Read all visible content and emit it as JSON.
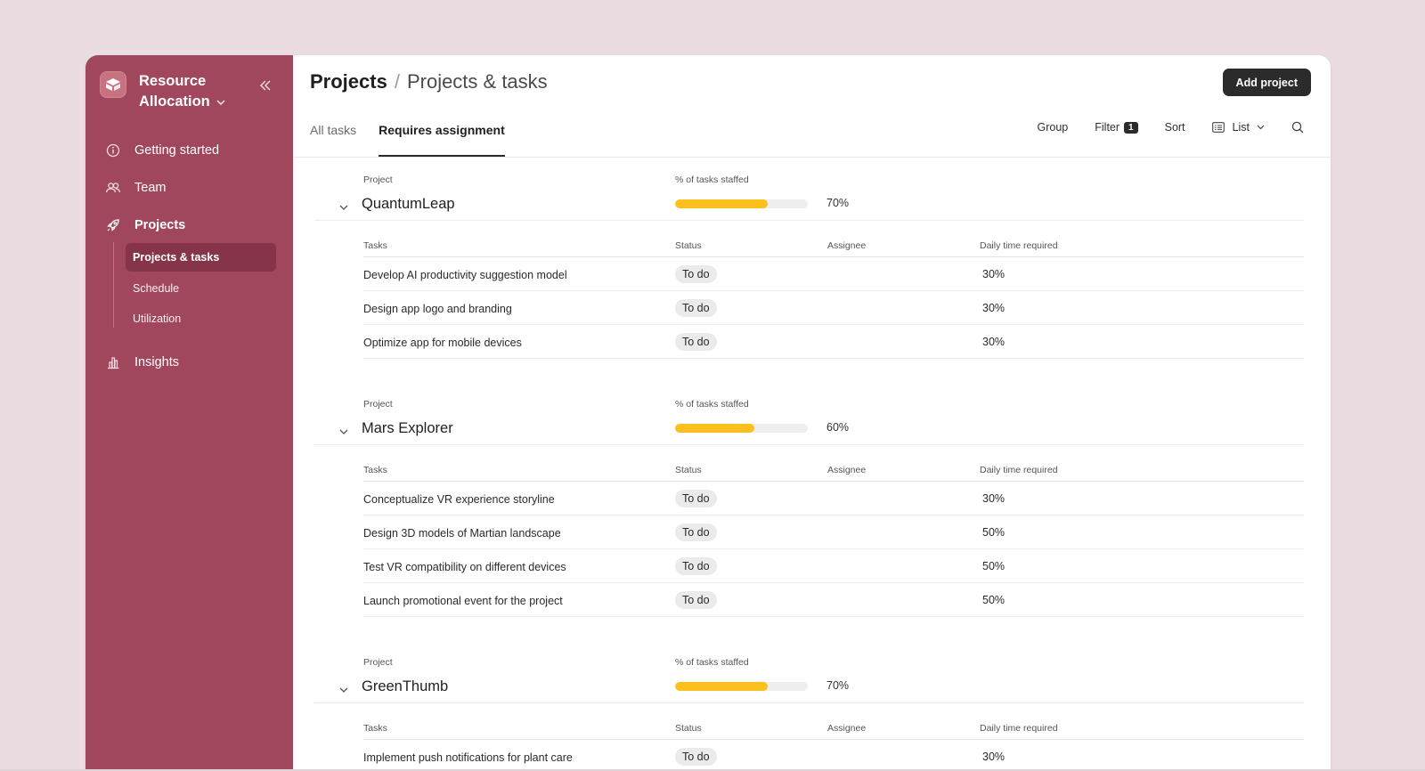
{
  "sidebar": {
    "workspace_line1": "Resource",
    "workspace_line2": "Allocation",
    "nav": [
      {
        "label": "Getting started",
        "icon": "info-icon"
      },
      {
        "label": "Team",
        "icon": "team-icon"
      },
      {
        "label": "Projects",
        "icon": "rocket-icon"
      },
      {
        "label": "Insights",
        "icon": "bar-chart-icon"
      }
    ],
    "subnav": [
      {
        "label": "Projects & tasks",
        "active": true
      },
      {
        "label": "Schedule",
        "active": false
      },
      {
        "label": "Utilization",
        "active": false
      }
    ]
  },
  "header": {
    "breadcrumb_root": "Projects",
    "breadcrumb_sep": "/",
    "breadcrumb_current": "Projects & tasks",
    "add_label": "Add project"
  },
  "tabs": [
    {
      "label": "All tasks",
      "active": false
    },
    {
      "label": "Requires assignment",
      "active": true
    }
  ],
  "toolbar": {
    "group": "Group",
    "filter": "Filter",
    "filter_count": "1",
    "sort": "Sort",
    "view": "List"
  },
  "columns": {
    "project": "Project",
    "staffed": "% of tasks staffed",
    "tasks": "Tasks",
    "status": "Status",
    "assignee": "Assignee",
    "time": "Daily time required"
  },
  "colors": {
    "sidebar": "#a0475d",
    "progress": "#fbbf1e",
    "accent_dark": "#2b2b2b"
  },
  "projects": [
    {
      "name": "QuantumLeap",
      "pct": 70,
      "pct_label": "70%",
      "tasks": [
        {
          "name": "Develop AI productivity suggestion model",
          "status": "To do",
          "assignee": "",
          "time": "30%"
        },
        {
          "name": "Design app logo and branding",
          "status": "To do",
          "assignee": "",
          "time": "30%"
        },
        {
          "name": "Optimize app for mobile devices",
          "status": "To do",
          "assignee": "",
          "time": "30%"
        }
      ]
    },
    {
      "name": "Mars Explorer",
      "pct": 60,
      "pct_label": "60%",
      "tasks": [
        {
          "name": "Conceptualize VR experience storyline",
          "status": "To do",
          "assignee": "",
          "time": "30%"
        },
        {
          "name": "Design 3D models of Martian landscape",
          "status": "To do",
          "assignee": "",
          "time": "50%"
        },
        {
          "name": "Test VR compatibility on different devices",
          "status": "To do",
          "assignee": "",
          "time": "50%"
        },
        {
          "name": "Launch promotional event for the project",
          "status": "To do",
          "assignee": "",
          "time": "50%"
        }
      ]
    },
    {
      "name": "GreenThumb",
      "pct": 70,
      "pct_label": "70%",
      "tasks": [
        {
          "name": "Implement push notifications for plant care",
          "status": "To do",
          "assignee": "",
          "time": "30%"
        }
      ]
    }
  ]
}
